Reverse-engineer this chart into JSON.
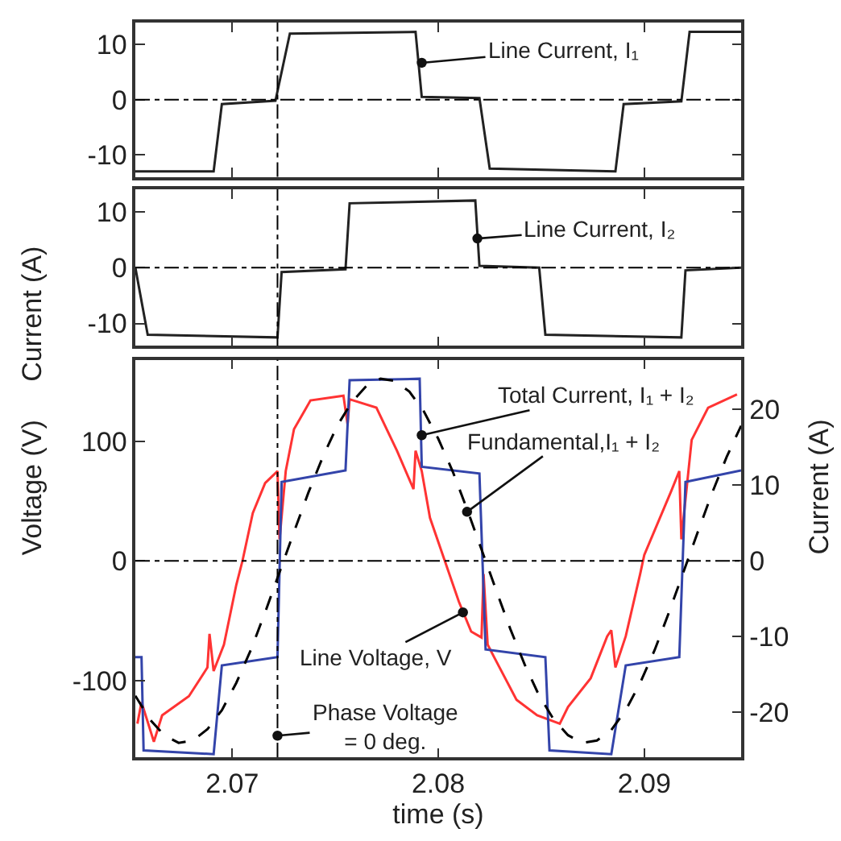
{
  "chart_data": [
    {
      "type": "line",
      "ylabel": "Current (A)",
      "xlim": [
        2.0653,
        2.0947
      ],
      "xticks": [
        2.07,
        2.08,
        2.09
      ],
      "ylim": [
        -14,
        14
      ],
      "yticks": [
        -10,
        0,
        10
      ],
      "tick_labels": "y",
      "series": [
        {
          "color": "#222222",
          "x": [
            2.0653,
            2.0691,
            2.0695,
            2.0721,
            2.0728,
            2.0789,
            2.0792,
            2.082,
            2.0825,
            2.0886,
            2.089,
            2.0918,
            2.0922,
            2.0947
          ],
          "values": [
            -13,
            -13,
            -0.8,
            -0.2,
            12,
            12.3,
            0.5,
            0.3,
            -12.5,
            -13,
            -0.8,
            -0.3,
            12.3,
            12.3
          ]
        }
      ],
      "ref_lines": [
        {
          "axis": "y",
          "value": 0,
          "color": "#000000",
          "line_style": "dashdot"
        },
        {
          "axis": "x",
          "value": 2.0722,
          "color": "#000000",
          "line_style": "dashdot"
        }
      ],
      "annotations": [
        {
          "text": "Line Current, I₁",
          "x": 2.0792,
          "y": 6.7
        }
      ]
    },
    {
      "type": "line",
      "xlim": [
        2.0653,
        2.0947
      ],
      "xticks": [
        2.07,
        2.08,
        2.09
      ],
      "ylim": [
        -14,
        14
      ],
      "yticks": [
        -10,
        0,
        10
      ],
      "tick_labels": "y",
      "series": [
        {
          "color": "#222222",
          "x": [
            2.0653,
            2.0659,
            2.0722,
            2.0724,
            2.0755,
            2.0757,
            2.0818,
            2.082,
            2.0849,
            2.0852,
            2.0918,
            2.092,
            2.0947
          ],
          "values": [
            0,
            -12,
            -12.5,
            -0.8,
            -0.3,
            11.5,
            12,
            0.3,
            0,
            -12,
            -12.5,
            -0.5,
            0
          ]
        }
      ],
      "ref_lines": [
        {
          "axis": "y",
          "value": 0,
          "color": "#000000",
          "line_style": "dashdot"
        },
        {
          "axis": "x",
          "value": 2.0722,
          "color": "#000000",
          "line_style": "dashdot"
        }
      ],
      "annotations": [
        {
          "text": "Line Current, I₂",
          "x": 2.0819,
          "y": 5.2
        }
      ]
    },
    {
      "type": "line",
      "xlabel": "time (s)",
      "ylabel": "Voltage (V)",
      "y2label": "Current (A)",
      "xlim": [
        2.0653,
        2.0947
      ],
      "xticks": [
        2.07,
        2.08,
        2.09
      ],
      "ylim": [
        -164,
        168
      ],
      "yticks": [
        -100,
        0,
        100
      ],
      "y2lim": [
        -25.9,
        26.5
      ],
      "y2ticks": [
        -20,
        -10,
        0,
        10,
        20
      ],
      "series": [
        {
          "color": "#ff3333",
          "line_style": "solid",
          "x": [
            2.0654,
            2.0656,
            2.0662,
            2.0666,
            2.0679,
            2.0688,
            2.0689,
            2.0691,
            2.0696,
            2.0702,
            2.0705,
            2.071,
            2.0716,
            2.0722,
            2.0723,
            2.0726,
            2.073,
            2.0738,
            2.0754,
            2.0756,
            2.0757,
            2.077,
            2.078,
            2.0788,
            2.0789,
            2.0792,
            2.0796,
            2.0804,
            2.081,
            2.0816,
            2.0821,
            2.0822,
            2.0824,
            2.0827,
            2.0838,
            2.0848,
            2.0859,
            2.0863,
            2.0874,
            2.0882,
            2.0884,
            2.0886,
            2.0891,
            2.0898,
            2.09,
            2.0913,
            2.0917,
            2.0918,
            2.0923,
            2.0931,
            2.0945
          ],
          "values": [
            -136,
            -118,
            -151,
            -129,
            -113,
            -89,
            -61,
            -92,
            -70,
            -20,
            0,
            40,
            65,
            75,
            18,
            75,
            110,
            134,
            138,
            114,
            135,
            128,
            92,
            60,
            92,
            75,
            36,
            -4,
            -34,
            -59,
            -64,
            -11,
            -70,
            -80,
            -116,
            -129,
            -136,
            -122,
            -98,
            -63,
            -58,
            -89,
            -63,
            -11,
            5,
            58,
            75,
            18,
            101,
            128,
            139
          ]
        },
        {
          "color": "#3344aa",
          "line_style": "solid",
          "axis": "y2",
          "x": [
            2.0653,
            2.0656,
            2.0657,
            2.0691,
            2.0695,
            2.0722,
            2.0724,
            2.0755,
            2.0757,
            2.0791,
            2.0792,
            2.082,
            2.0823,
            2.0852,
            2.0854,
            2.0884,
            2.0891,
            2.0917,
            2.092,
            2.0947
          ],
          "values": [
            -12.7,
            -12.7,
            -25,
            -25.5,
            -13.8,
            -12.7,
            10.4,
            11.9,
            23.8,
            24,
            12.4,
            11.5,
            -11.7,
            -12.7,
            -25,
            -25.5,
            -13.8,
            -12.7,
            10.4,
            11.9
          ]
        },
        {
          "color": "#000000",
          "line_style": "dashed",
          "axis": "y2",
          "x": [
            2.0653,
            2.066,
            2.0667,
            2.0674,
            2.0681,
            2.0688,
            2.0695,
            2.0702,
            2.0709,
            2.0716,
            2.0723,
            2.073,
            2.0737,
            2.0744,
            2.0751,
            2.0758,
            2.0765,
            2.0772,
            2.0779,
            2.0786,
            2.0793,
            2.08,
            2.0807,
            2.0814,
            2.0821,
            2.0828,
            2.0835,
            2.0842,
            2.0849,
            2.0856,
            2.0863,
            2.087,
            2.0877,
            2.0884,
            2.0891,
            2.0898,
            2.0905,
            2.0912,
            2.0919,
            2.0926,
            2.0933,
            2.094,
            2.0947
          ],
          "values": [
            -17.8,
            -20.9,
            -23,
            -24,
            -23.7,
            -22.2,
            -19.7,
            -16.1,
            -11.8,
            -6.8,
            -1.5,
            3.8,
            9,
            13.7,
            17.8,
            20.9,
            23,
            24,
            23.7,
            22.3,
            19.7,
            16.1,
            11.8,
            6.8,
            1.5,
            -3.8,
            -9,
            -13.7,
            -17.8,
            -20.9,
            -23,
            -24,
            -23.7,
            -22.3,
            -19.7,
            -16.1,
            -11.8,
            -6.8,
            -1.5,
            3.8,
            9,
            13.7,
            17.8
          ]
        }
      ],
      "ref_lines": [
        {
          "axis": "y",
          "value": 0,
          "color": "#000000",
          "line_style": "dashdot"
        },
        {
          "axis": "x",
          "value": 2.0722,
          "color": "#000000",
          "line_style": "dashdot"
        }
      ],
      "annotations": [
        {
          "text": "Total Current, I₁ + I₂",
          "x": 2.0792,
          "y": 105
        },
        {
          "text": "Fundamental,I₁ + I₂",
          "x": 2.0814,
          "y": 41
        },
        {
          "text": "Line Voltage, V",
          "x": 2.0812,
          "y": -43
        },
        {
          "text": "Phase Voltage\n= 0 deg.",
          "x": 2.0722,
          "y": -146
        }
      ]
    }
  ]
}
